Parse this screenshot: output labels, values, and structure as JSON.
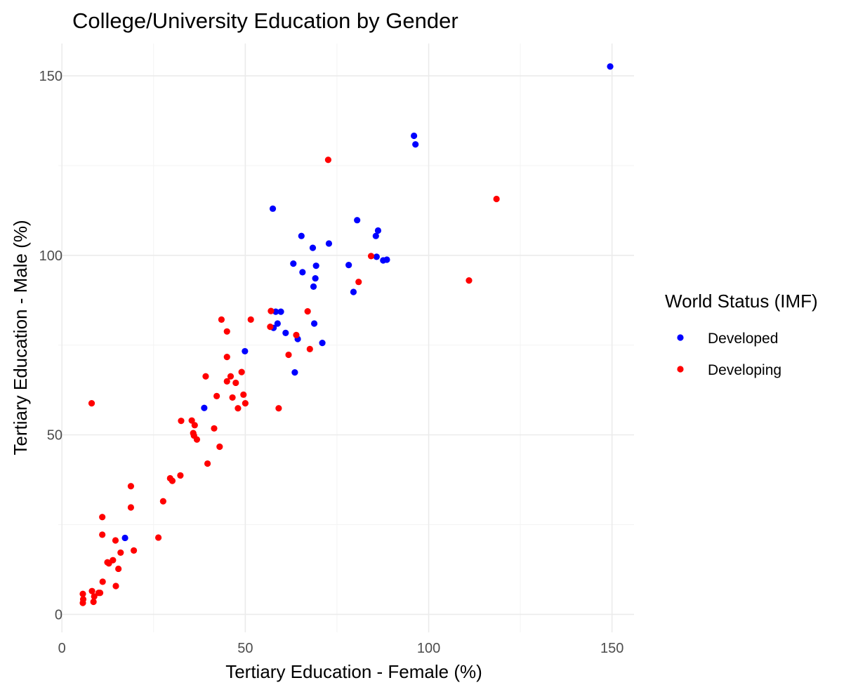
{
  "chart_data": {
    "type": "scatter",
    "title": "College/University Education by Gender",
    "xlabel": "Tertiary Education - Female (%)",
    "ylabel": "Tertiary Education - Male (%)",
    "xlim": [
      -1,
      156
    ],
    "ylim": [
      -5,
      159
    ],
    "x_ticks": [
      0,
      50,
      100,
      150
    ],
    "y_ticks": [
      0,
      50,
      100,
      150
    ],
    "x_tick_labels": [
      "0",
      "50",
      "100",
      "150"
    ],
    "y_tick_labels": [
      "0",
      "50",
      "100",
      "150"
    ],
    "grid": true,
    "legend": {
      "title": "World Status (IMF)",
      "position": "right"
    },
    "series": [
      {
        "name": "Developed",
        "color": "#0000ff",
        "points": [
          [
            149.5,
            152.6
          ],
          [
            96.0,
            133.3
          ],
          [
            96.4,
            130.9
          ],
          [
            57.5,
            113.0
          ],
          [
            80.5,
            109.8
          ],
          [
            86.2,
            106.9
          ],
          [
            85.6,
            105.4
          ],
          [
            65.3,
            105.4
          ],
          [
            72.8,
            103.3
          ],
          [
            68.4,
            102.1
          ],
          [
            78.2,
            97.3
          ],
          [
            63.1,
            97.7
          ],
          [
            69.3,
            97.1
          ],
          [
            65.6,
            95.3
          ],
          [
            69.1,
            93.6
          ],
          [
            68.6,
            91.3
          ],
          [
            85.8,
            99.6
          ],
          [
            87.6,
            98.6
          ],
          [
            88.6,
            98.8
          ],
          [
            79.5,
            89.8
          ],
          [
            58.3,
            84.3
          ],
          [
            59.7,
            84.3
          ],
          [
            58.8,
            81.0
          ],
          [
            57.7,
            79.8
          ],
          [
            61.0,
            78.4
          ],
          [
            68.8,
            81.0
          ],
          [
            64.3,
            76.7
          ],
          [
            71.0,
            75.6
          ],
          [
            49.9,
            73.3
          ],
          [
            63.5,
            67.4
          ],
          [
            38.8,
            57.5
          ],
          [
            17.2,
            21.3
          ]
        ]
      },
      {
        "name": "Developing",
        "color": "#ff0000",
        "points": [
          [
            72.6,
            126.6
          ],
          [
            118.5,
            115.7
          ],
          [
            111.0,
            93.0
          ],
          [
            84.3,
            99.8
          ],
          [
            80.9,
            92.6
          ],
          [
            57.0,
            84.5
          ],
          [
            67.0,
            84.4
          ],
          [
            43.5,
            82.1
          ],
          [
            51.5,
            82.1
          ],
          [
            56.8,
            80.1
          ],
          [
            45.0,
            78.8
          ],
          [
            63.9,
            77.8
          ],
          [
            67.6,
            73.9
          ],
          [
            61.8,
            72.3
          ],
          [
            45.0,
            71.7
          ],
          [
            49.0,
            67.5
          ],
          [
            46.0,
            66.3
          ],
          [
            39.2,
            66.3
          ],
          [
            45.0,
            64.9
          ],
          [
            47.4,
            64.5
          ],
          [
            46.5,
            60.4
          ],
          [
            49.5,
            61.2
          ],
          [
            42.2,
            60.8
          ],
          [
            50.0,
            58.8
          ],
          [
            48.0,
            57.4
          ],
          [
            59.1,
            57.4
          ],
          [
            8.1,
            58.8
          ],
          [
            32.5,
            53.9
          ],
          [
            35.4,
            54.0
          ],
          [
            36.2,
            52.7
          ],
          [
            41.5,
            51.8
          ],
          [
            35.8,
            50.5
          ],
          [
            36.0,
            49.8
          ],
          [
            36.8,
            48.7
          ],
          [
            43.0,
            46.7
          ],
          [
            39.7,
            42.0
          ],
          [
            32.3,
            38.7
          ],
          [
            29.5,
            37.9
          ],
          [
            30.1,
            37.2
          ],
          [
            18.8,
            35.7
          ],
          [
            27.6,
            31.5
          ],
          [
            18.8,
            29.8
          ],
          [
            11.0,
            27.1
          ],
          [
            11.0,
            22.2
          ],
          [
            26.3,
            21.4
          ],
          [
            14.6,
            20.6
          ],
          [
            19.6,
            17.8
          ],
          [
            16.0,
            17.2
          ],
          [
            13.9,
            15.1
          ],
          [
            12.4,
            14.5
          ],
          [
            12.8,
            14.2
          ],
          [
            15.4,
            12.7
          ],
          [
            11.1,
            9.1
          ],
          [
            14.7,
            7.9
          ],
          [
            8.2,
            6.5
          ],
          [
            10.0,
            6.0
          ],
          [
            5.7,
            5.7
          ],
          [
            10.4,
            6.0
          ],
          [
            8.8,
            5.0
          ],
          [
            5.8,
            4.2
          ],
          [
            5.7,
            3.2
          ],
          [
            8.6,
            3.5
          ]
        ]
      }
    ]
  }
}
